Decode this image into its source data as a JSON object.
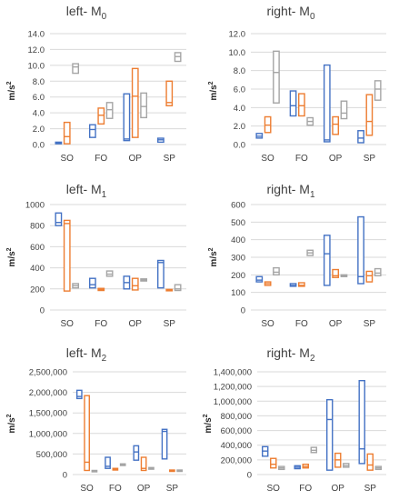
{
  "series_colors": {
    "s1": "#4472c4",
    "s2": "#ed7d31",
    "s3": "#a5a5a5"
  },
  "chart_data": [
    {
      "type": "box",
      "title": "left- M0",
      "title_main": "left- M",
      "title_sub": "0",
      "ylabel": "m/s2",
      "ylim": [
        0,
        14
      ],
      "yticks": [
        "0.0",
        "2.0",
        "4.0",
        "6.0",
        "8.0",
        "10.0",
        "12.0",
        "14.0"
      ],
      "categories": [
        "SO",
        "FO",
        "OP",
        "SP"
      ],
      "series": [
        {
          "color": "s1",
          "boxes": [
            [
              0.1,
              0.2,
              0.3
            ],
            [
              0.9,
              1.9,
              2.5
            ],
            [
              0.5,
              0.7,
              6.4
            ],
            [
              0.3,
              0.6,
              0.8
            ]
          ]
        },
        {
          "color": "s2",
          "boxes": [
            [
              0.1,
              1.0,
              2.8
            ],
            [
              2.6,
              3.7,
              4.6
            ],
            [
              0.9,
              6.1,
              9.6
            ],
            [
              4.9,
              5.3,
              8.0
            ]
          ]
        },
        {
          "color": "s3",
          "boxes": [
            [
              9.0,
              9.8,
              10.2
            ],
            [
              3.3,
              4.4,
              5.3
            ],
            [
              3.4,
              4.8,
              6.5
            ],
            [
              10.5,
              11.1,
              11.6
            ]
          ]
        }
      ]
    },
    {
      "type": "box",
      "title": "right- M0",
      "title_main": "right- M",
      "title_sub": "0",
      "ylabel": "m/s2",
      "ylim": [
        0,
        12
      ],
      "yticks": [
        "0.0",
        "2.0",
        "4.0",
        "6.0",
        "8.0",
        "10.0",
        "12.0"
      ],
      "categories": [
        "SO",
        "FO",
        "OP",
        "SP"
      ],
      "series": [
        {
          "color": "s1",
          "boxes": [
            [
              0.7,
              0.9,
              1.2
            ],
            [
              3.1,
              4.2,
              5.8
            ],
            [
              0.3,
              0.5,
              8.6
            ],
            [
              0.2,
              0.7,
              1.5
            ]
          ]
        },
        {
          "color": "s2",
          "boxes": [
            [
              1.3,
              2.1,
              3.0
            ],
            [
              3.1,
              4.2,
              5.5
            ],
            [
              1.1,
              2.2,
              3.0
            ],
            [
              1.0,
              2.5,
              5.4
            ]
          ]
        },
        {
          "color": "s3",
          "boxes": [
            [
              4.5,
              7.8,
              10.1
            ],
            [
              2.1,
              2.5,
              2.9
            ],
            [
              2.8,
              3.4,
              4.7
            ],
            [
              4.8,
              6.0,
              6.9
            ]
          ]
        }
      ]
    },
    {
      "type": "box",
      "title": "left- M1",
      "title_main": "left- M",
      "title_sub": "1",
      "ylabel": "m/s2",
      "ylim": [
        0,
        1000
      ],
      "yticks": [
        "0",
        "200",
        "400",
        "600",
        "800",
        "1000"
      ],
      "categories": [
        "SO",
        "FO",
        "OP",
        "SP"
      ],
      "series": [
        {
          "color": "s1",
          "boxes": [
            [
              800,
              830,
              920
            ],
            [
              210,
              240,
              300
            ],
            [
              200,
              260,
              320
            ],
            [
              210,
              450,
              470
            ]
          ]
        },
        {
          "color": "s2",
          "boxes": [
            [
              180,
              820,
              850
            ],
            [
              185,
              195,
              205
            ],
            [
              190,
              230,
              300
            ],
            [
              185,
              190,
              195
            ]
          ]
        },
        {
          "color": "s3",
          "boxes": [
            [
              210,
              230,
              250
            ],
            [
              320,
              340,
              370
            ],
            [
              275,
              285,
              295
            ],
            [
              185,
              200,
              240
            ]
          ]
        }
      ]
    },
    {
      "type": "box",
      "title": "right- M1",
      "title_main": "right- M",
      "title_sub": "1",
      "ylabel": "m/s2",
      "ylim": [
        0,
        600
      ],
      "yticks": [
        "0",
        "100",
        "200",
        "300",
        "400",
        "500",
        "600"
      ],
      "categories": [
        "SO",
        "FO",
        "OP",
        "SP"
      ],
      "series": [
        {
          "color": "s1",
          "boxes": [
            [
              160,
              170,
              190
            ],
            [
              135,
              140,
              150
            ],
            [
              140,
              320,
              425
            ],
            [
              150,
              190,
              530
            ]
          ]
        },
        {
          "color": "s2",
          "boxes": [
            [
              140,
              150,
              160
            ],
            [
              135,
              140,
              155
            ],
            [
              185,
              195,
              230
            ],
            [
              160,
              195,
              220
            ]
          ]
        },
        {
          "color": "s3",
          "boxes": [
            [
              200,
              215,
              240
            ],
            [
              310,
              325,
              340
            ],
            [
              190,
              195,
              200
            ],
            [
              195,
              210,
              235
            ]
          ]
        }
      ]
    },
    {
      "type": "box",
      "title": "left- M2",
      "title_main": "left- M",
      "title_sub": "2",
      "ylabel": "m/s2",
      "ylim": [
        0,
        2500000
      ],
      "yticks": [
        "0",
        "500,000",
        "1,000,000",
        "1,500,000",
        "2,000,000",
        "2,500,000"
      ],
      "categories": [
        "SO",
        "FO",
        "OP",
        "SP"
      ],
      "series": [
        {
          "color": "s1",
          "boxes": [
            [
              1850000,
              1900000,
              2050000
            ],
            [
              150000,
              200000,
              420000
            ],
            [
              350000,
              550000,
              700000
            ],
            [
              380000,
              1050000,
              1100000
            ]
          ]
        },
        {
          "color": "s2",
          "boxes": [
            [
              100000,
              300000,
              1920000
            ],
            [
              110000,
              130000,
              150000
            ],
            [
              100000,
              150000,
              420000
            ],
            [
              80000,
              90000,
              110000
            ]
          ]
        },
        {
          "color": "s3",
          "boxes": [
            [
              70000,
              80000,
              100000
            ],
            [
              220000,
              240000,
              260000
            ],
            [
              130000,
              150000,
              170000
            ],
            [
              80000,
              90000,
              110000
            ]
          ]
        }
      ]
    },
    {
      "type": "box",
      "title": "right- M2",
      "title_main": "right- M",
      "title_sub": "2",
      "ylabel": "m/s2",
      "ylim": [
        0,
        1400000
      ],
      "yticks": [
        "0",
        "200,000",
        "400,000",
        "600,000",
        "800,000",
        "1,000,000",
        "1,200,000",
        "1,400,000"
      ],
      "categories": [
        "SO",
        "FO",
        "OP",
        "SP"
      ],
      "series": [
        {
          "color": "s1",
          "boxes": [
            [
              250000,
              320000,
              380000
            ],
            [
              80000,
              100000,
              120000
            ],
            [
              60000,
              750000,
              1020000
            ],
            [
              150000,
              350000,
              1280000
            ]
          ]
        },
        {
          "color": "s2",
          "boxes": [
            [
              90000,
              140000,
              220000
            ],
            [
              90000,
              110000,
              140000
            ],
            [
              100000,
              200000,
              290000
            ],
            [
              60000,
              130000,
              280000
            ]
          ]
        },
        {
          "color": "s3",
          "boxes": [
            [
              70000,
              90000,
              110000
            ],
            [
              300000,
              330000,
              370000
            ],
            [
              100000,
              120000,
              150000
            ],
            [
              70000,
              90000,
              110000
            ]
          ]
        }
      ]
    }
  ]
}
